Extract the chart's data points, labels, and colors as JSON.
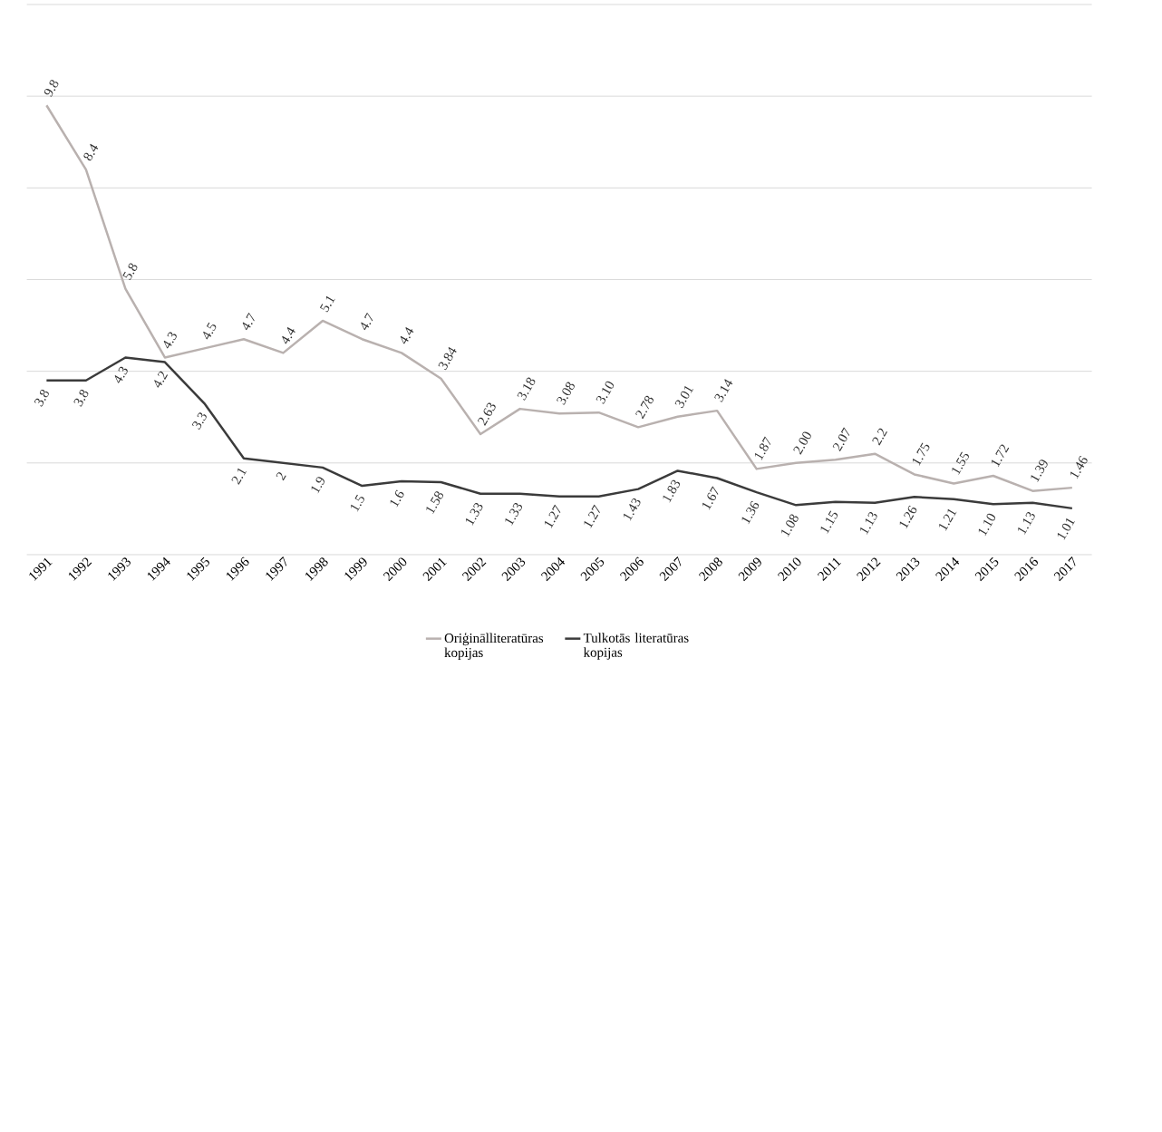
{
  "chart_data": {
    "type": "line",
    "categories": [
      "1991",
      "1992",
      "1993",
      "1994",
      "1995",
      "1996",
      "1997",
      "1998",
      "1999",
      "2000",
      "2001",
      "2002",
      "2003",
      "2004",
      "2005",
      "2006",
      "2007",
      "2008",
      "2009",
      "2010",
      "2011",
      "2012",
      "2013",
      "2014",
      "2015",
      "2016",
      "2017"
    ],
    "series": [
      {
        "name": "Oriģinālliteratūras kopijas",
        "color": "#b9b1af",
        "values": [
          9.8,
          8.4,
          5.8,
          4.3,
          4.5,
          4.7,
          4.4,
          5.1,
          4.7,
          4.4,
          3.84,
          2.63,
          3.18,
          3.08,
          3.1,
          2.78,
          3.01,
          3.14,
          1.87,
          2.0,
          2.07,
          2.2,
          1.75,
          1.55,
          1.72,
          1.39,
          1.46
        ],
        "value_labels": [
          "9.8",
          "8.4",
          "5.8",
          "4.3",
          "4.5",
          "4.7",
          "4.4",
          "5.1",
          "4.7",
          "4.4",
          "3.84",
          "2.63",
          "3.18",
          "3.08",
          "3.10",
          "2.78",
          "3.01",
          "3.14",
          "1.87",
          "2.00",
          "2.07",
          "2.2",
          "1.75",
          "1.55",
          "1.72",
          "1.39",
          "1.46"
        ]
      },
      {
        "name": "Tulkotās literatūras kopijas",
        "color": "#3b3b3b",
        "values": [
          3.8,
          3.8,
          4.3,
          4.2,
          3.3,
          2.1,
          2,
          1.9,
          1.5,
          1.6,
          1.58,
          1.33,
          1.33,
          1.27,
          1.27,
          1.43,
          1.83,
          1.67,
          1.36,
          1.08,
          1.15,
          1.13,
          1.26,
          1.21,
          1.1,
          1.13,
          1.01
        ],
        "value_labels": [
          "3.8",
          "3.8",
          "4.3",
          "4.2",
          "3.3",
          "2.1",
          "2",
          "1.9",
          "1.5",
          "1.6",
          "1.58",
          "1.33",
          "1.33",
          "1.27",
          "1.27",
          "1.43",
          "1.83",
          "1.67",
          "1.36",
          "1.08",
          "1.15",
          "1.13",
          "1.26",
          "1.21",
          "1.10",
          "1.13",
          "1.01"
        ]
      }
    ],
    "ylim": [
      0,
      12
    ],
    "yticks": [
      0,
      2,
      4,
      6,
      8,
      10,
      12
    ],
    "tick_labels": "x",
    "grid": "y",
    "legend": "bottom",
    "marker": "none",
    "line_style": "solid"
  }
}
